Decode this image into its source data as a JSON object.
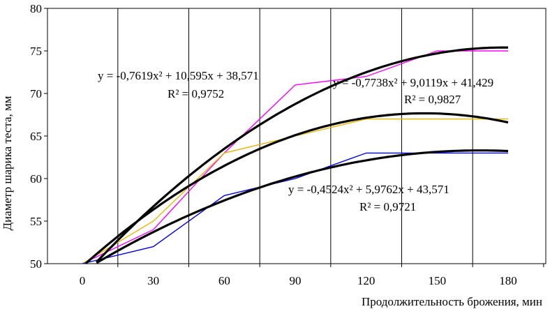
{
  "chart_data": {
    "type": "line",
    "xlabel": "Продолжительность брожения, мин",
    "ylabel": "Диаметр шарика теста, мм",
    "x": [
      0,
      30,
      60,
      90,
      120,
      150,
      180
    ],
    "xticks": [
      "0",
      "30",
      "60",
      "90",
      "120",
      "150",
      "180"
    ],
    "yticks": [
      "50",
      "55",
      "60",
      "65",
      "70",
      "75",
      "80"
    ],
    "ylim": [
      50,
      80
    ],
    "grid": "vertical",
    "series": [
      {
        "color": "#ff00ff",
        "values": [
          50,
          54,
          63,
          71,
          72,
          75,
          75
        ]
      },
      {
        "color": "#e8b400",
        "values": [
          50,
          55,
          63,
          65,
          67,
          67,
          67
        ]
      },
      {
        "color": "#0000ee",
        "values": [
          50,
          52,
          58,
          60,
          63,
          63,
          63
        ]
      }
    ],
    "trendlines": [
      {
        "color": "#000000",
        "a": -0.7619,
        "b": 10.595,
        "c": 38.571
      },
      {
        "color": "#000000",
        "a": -0.7738,
        "b": 9.0119,
        "c": 41.429
      },
      {
        "color": "#000000",
        "a": -0.4524,
        "b": 5.9762,
        "c": 43.571
      }
    ],
    "annotations": [
      {
        "equation": "y = -0,7619x² + 10,595x + 38,571",
        "r2": "R² = 0,9752"
      },
      {
        "equation": "y = -0,7738x² + 9,0119x + 41,429",
        "r2": "R² = 0,9827"
      },
      {
        "equation": "y = -0,4524x² + 5,9762x + 43,571",
        "r2": "R² = 0,9721"
      }
    ]
  }
}
